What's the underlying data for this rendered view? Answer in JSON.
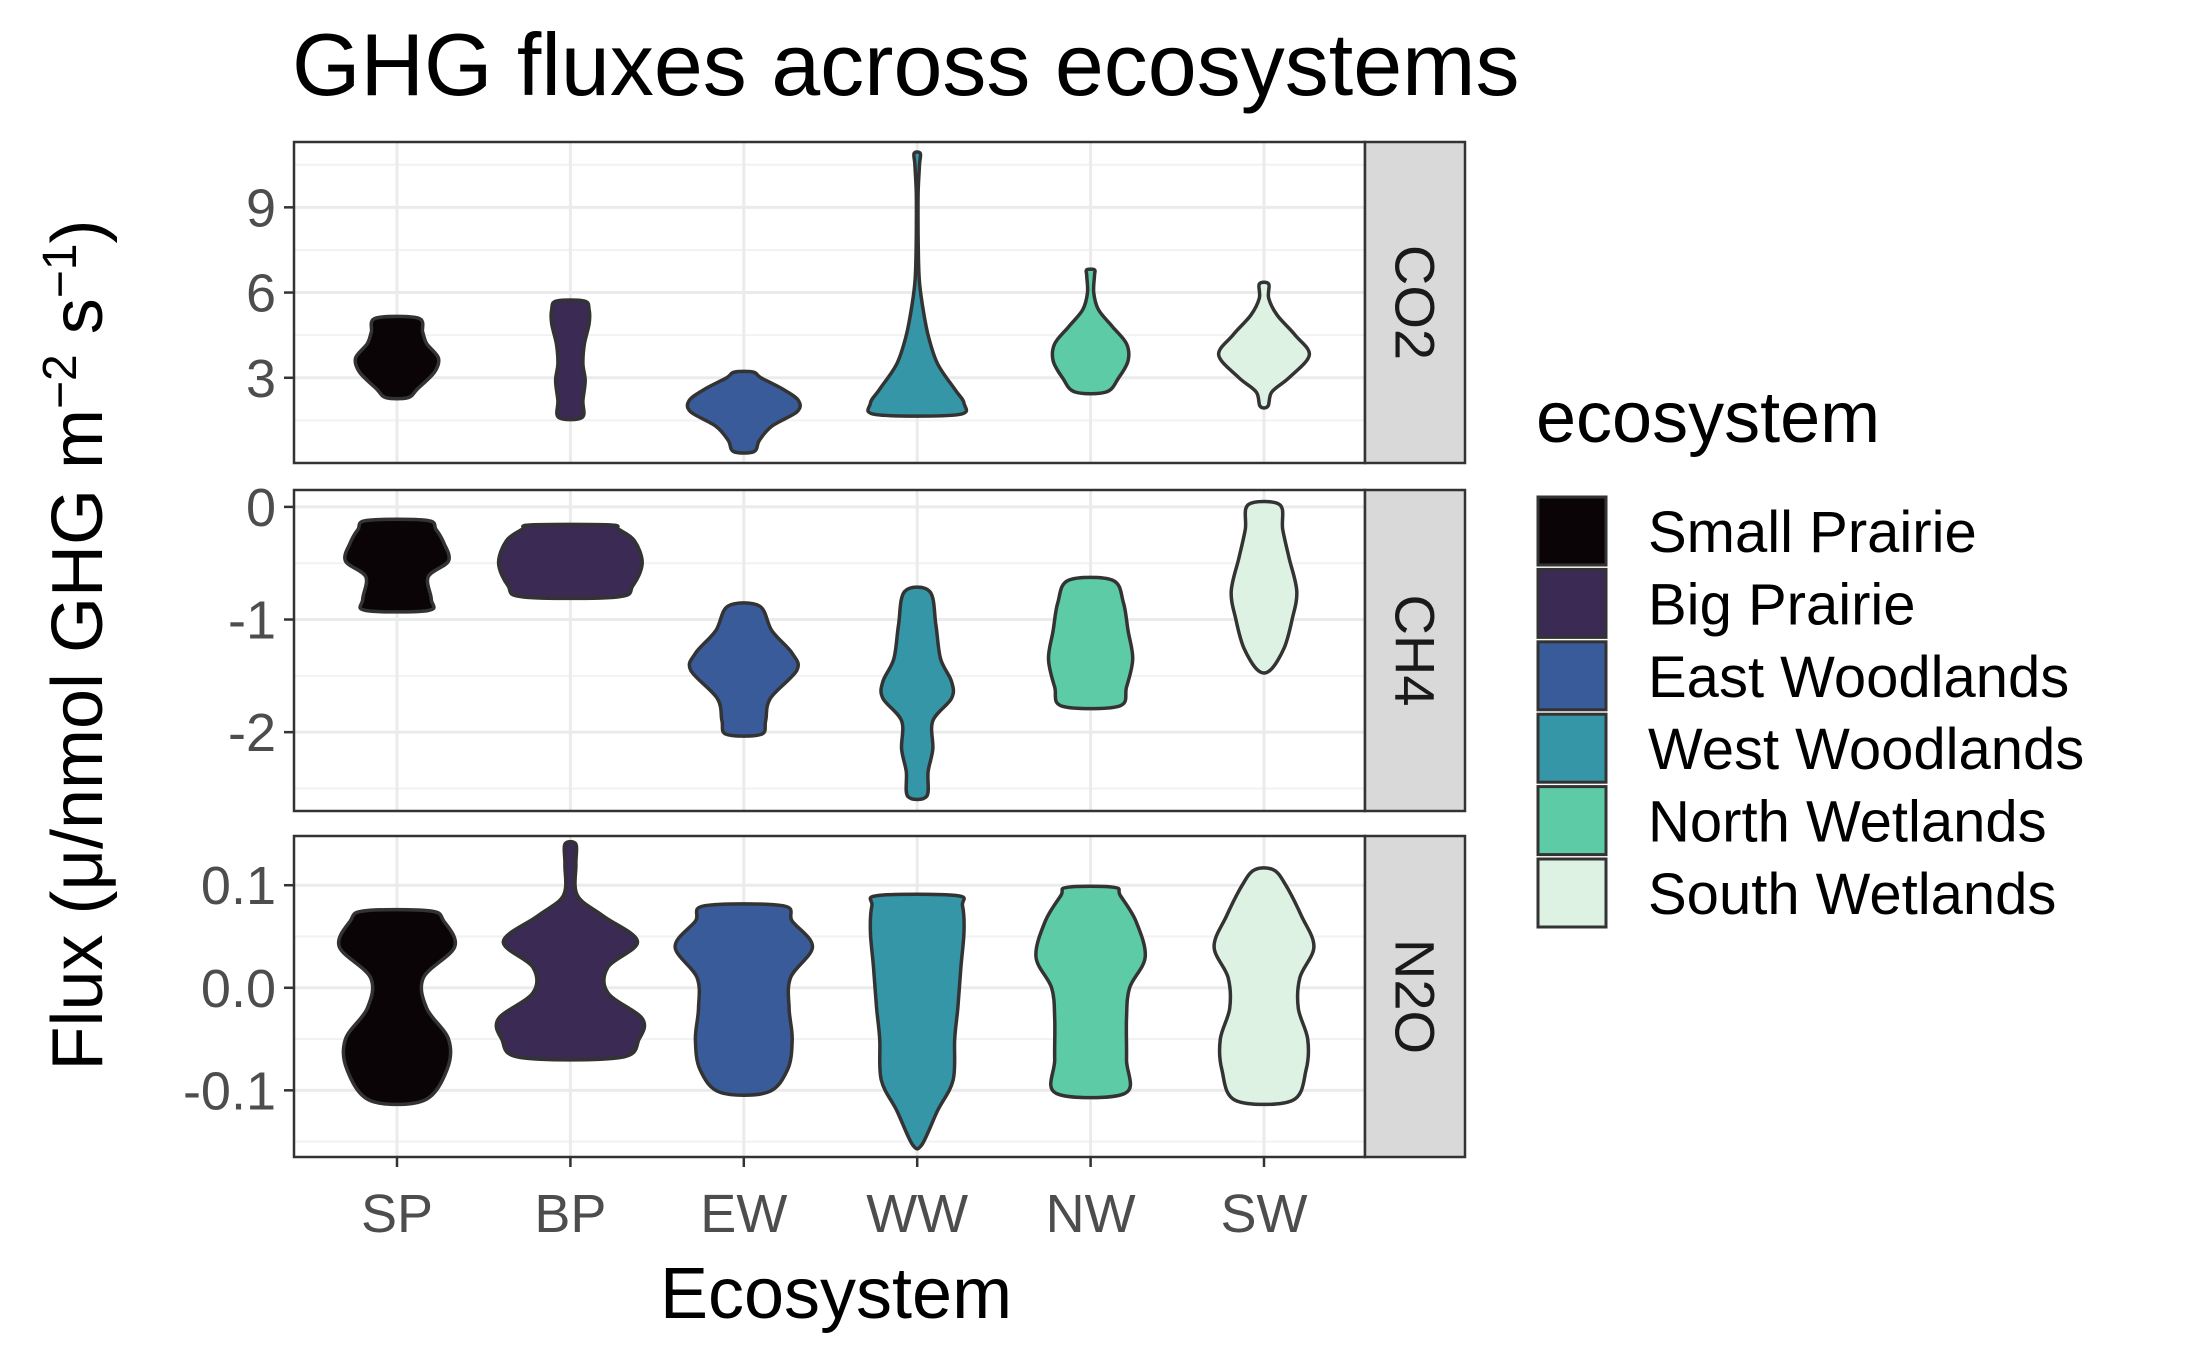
{
  "chart_data": {
    "type": "violin",
    "title": "GHG fluxes across ecosystems",
    "xlabel": "Ecosystem",
    "ylabel": "Flux (μ/nmol GHG m⁻² s⁻¹)",
    "ylabel_parts": {
      "main": "Flux (μ/nmol GHG m",
      "sup1": "−2",
      "mid": " s",
      "sup2": "−1",
      "end": ")"
    },
    "categories": [
      "SP",
      "BP",
      "EW",
      "WW",
      "NW",
      "SW"
    ],
    "legend": {
      "title": "ecosystem",
      "position": "right",
      "entries": [
        {
          "code": "SP",
          "label": "Small Prairie",
          "color": "#0b0406"
        },
        {
          "code": "BP",
          "label": "Big Prairie",
          "color": "#3a2a54"
        },
        {
          "code": "EW",
          "label": "East Woodlands",
          "color": "#3a5b9a"
        },
        {
          "code": "WW",
          "label": "West Woodlands",
          "color": "#3596a8"
        },
        {
          "code": "NW",
          "label": "North Wetlands",
          "color": "#5ecba7"
        },
        {
          "code": "SW",
          "label": "South Wetlands",
          "color": "#def2e4"
        }
      ]
    },
    "grid": true,
    "panels": [
      {
        "label": "CO2",
        "ylim": [
          0.0,
          11.3
        ],
        "yticks": [
          3,
          6,
          9
        ],
        "ytick_labels": [
          "3",
          "6",
          "9"
        ],
        "violins": [
          {
            "category": "SP",
            "profile": [
              [
                2.3,
                0.14
              ],
              [
                2.6,
                0.26
              ],
              [
                3.2,
                0.48
              ],
              [
                3.7,
                0.53
              ],
              [
                4.2,
                0.38
              ],
              [
                4.6,
                0.33
              ],
              [
                5.1,
                0.27
              ]
            ]
          },
          {
            "category": "BP",
            "profile": [
              [
                1.6,
                0.15
              ],
              [
                2.2,
                0.16
              ],
              [
                2.9,
                0.19
              ],
              [
                3.5,
                0.16
              ],
              [
                4.2,
                0.18
              ],
              [
                4.9,
                0.24
              ],
              [
                5.4,
                0.24
              ],
              [
                5.7,
                0.18
              ]
            ]
          },
          {
            "category": "EW",
            "profile": [
              [
                0.4,
                0.13
              ],
              [
                0.8,
                0.2
              ],
              [
                1.3,
                0.36
              ],
              [
                1.8,
                0.68
              ],
              [
                2.2,
                0.7
              ],
              [
                2.6,
                0.5
              ],
              [
                3.0,
                0.22
              ],
              [
                3.2,
                0.12
              ]
            ]
          },
          {
            "category": "WW",
            "profile": [
              [
                1.7,
                0.52
              ],
              [
                2.1,
                0.6
              ],
              [
                2.6,
                0.48
              ],
              [
                3.5,
                0.26
              ],
              [
                4.5,
                0.14
              ],
              [
                5.5,
                0.07
              ],
              [
                6.5,
                0.025
              ],
              [
                8.0,
                0.012
              ],
              [
                9.5,
                0.012
              ],
              [
                10.5,
                0.03
              ],
              [
                10.9,
                0.04
              ]
            ]
          },
          {
            "category": "NW",
            "profile": [
              [
                2.5,
                0.2
              ],
              [
                3.0,
                0.36
              ],
              [
                3.6,
                0.48
              ],
              [
                4.2,
                0.46
              ],
              [
                4.8,
                0.28
              ],
              [
                5.4,
                0.1
              ],
              [
                6.0,
                0.04
              ],
              [
                6.6,
                0.05
              ],
              [
                6.8,
                0.05
              ]
            ]
          },
          {
            "category": "SW",
            "profile": [
              [
                2.0,
                0.05
              ],
              [
                2.5,
                0.1
              ],
              [
                3.0,
                0.32
              ],
              [
                3.8,
                0.58
              ],
              [
                4.5,
                0.4
              ],
              [
                5.2,
                0.17
              ],
              [
                5.8,
                0.06
              ],
              [
                6.3,
                0.06
              ]
            ]
          }
        ]
      },
      {
        "label": "CH4",
        "ylim": [
          -2.7,
          0.15
        ],
        "yticks": [
          -2,
          -1,
          0
        ],
        "ytick_labels": [
          "-2",
          "-1",
          "0"
        ],
        "violins": [
          {
            "category": "SP",
            "profile": [
              [
                -0.92,
                0.4
              ],
              [
                -0.82,
                0.44
              ],
              [
                -0.62,
                0.4
              ],
              [
                -0.48,
                0.66
              ],
              [
                -0.32,
                0.6
              ],
              [
                -0.2,
                0.5
              ],
              [
                -0.12,
                0.38
              ]
            ]
          },
          {
            "category": "BP",
            "profile": [
              [
                -0.8,
                0.6
              ],
              [
                -0.7,
                0.8
              ],
              [
                -0.5,
                0.92
              ],
              [
                -0.3,
                0.82
              ],
              [
                -0.2,
                0.62
              ],
              [
                -0.16,
                0.5
              ]
            ]
          },
          {
            "category": "EW",
            "profile": [
              [
                -2.02,
                0.22
              ],
              [
                -1.9,
                0.28
              ],
              [
                -1.7,
                0.34
              ],
              [
                -1.45,
                0.68
              ],
              [
                -1.3,
                0.62
              ],
              [
                -1.1,
                0.36
              ],
              [
                -0.88,
                0.2
              ]
            ]
          },
          {
            "category": "WW",
            "profile": [
              [
                -2.57,
                0.12
              ],
              [
                -2.35,
                0.14
              ],
              [
                -2.15,
                0.2
              ],
              [
                -1.9,
                0.2
              ],
              [
                -1.7,
                0.44
              ],
              [
                -1.55,
                0.44
              ],
              [
                -1.35,
                0.3
              ],
              [
                -1.05,
                0.24
              ],
              [
                -0.75,
                0.16
              ]
            ]
          },
          {
            "category": "NW",
            "profile": [
              [
                -1.77,
                0.36
              ],
              [
                -1.6,
                0.46
              ],
              [
                -1.35,
                0.54
              ],
              [
                -1.1,
                0.48
              ],
              [
                -0.85,
                0.42
              ],
              [
                -0.65,
                0.28
              ]
            ]
          },
          {
            "category": "SW",
            "profile": [
              [
                -1.45,
                0.08
              ],
              [
                -1.25,
                0.26
              ],
              [
                -1.0,
                0.36
              ],
              [
                -0.75,
                0.42
              ],
              [
                -0.45,
                0.32
              ],
              [
                -0.2,
                0.24
              ],
              [
                0.02,
                0.2
              ]
            ]
          }
        ]
      },
      {
        "label": "N2O",
        "ylim": [
          -0.165,
          0.148
        ],
        "yticks": [
          -0.1,
          0.0,
          0.1
        ],
        "ytick_labels": [
          "-0.1",
          "0.0",
          "0.1"
        ],
        "violins": [
          {
            "category": "SP",
            "profile": [
              [
                -0.11,
                0.34
              ],
              [
                -0.08,
                0.64
              ],
              [
                -0.05,
                0.66
              ],
              [
                -0.02,
                0.38
              ],
              [
                0.01,
                0.34
              ],
              [
                0.04,
                0.74
              ],
              [
                0.065,
                0.6
              ],
              [
                0.075,
                0.42
              ]
            ]
          },
          {
            "category": "BP",
            "profile": [
              [
                -0.068,
                0.64
              ],
              [
                -0.05,
                0.88
              ],
              [
                -0.03,
                0.92
              ],
              [
                -0.005,
                0.48
              ],
              [
                0.02,
                0.48
              ],
              [
                0.045,
                0.86
              ],
              [
                0.07,
                0.42
              ],
              [
                0.09,
                0.09
              ],
              [
                0.12,
                0.07
              ],
              [
                0.14,
                0.07
              ]
            ]
          },
          {
            "category": "EW",
            "profile": [
              [
                -0.102,
                0.3
              ],
              [
                -0.08,
                0.56
              ],
              [
                -0.05,
                0.62
              ],
              [
                -0.02,
                0.58
              ],
              [
                0.01,
                0.6
              ],
              [
                0.04,
                0.88
              ],
              [
                0.065,
                0.62
              ],
              [
                0.08,
                0.5
              ]
            ]
          },
          {
            "category": "WW",
            "profile": [
              [
                -0.153,
                0.06
              ],
              [
                -0.12,
                0.26
              ],
              [
                -0.09,
                0.46
              ],
              [
                -0.05,
                0.48
              ],
              [
                -0.02,
                0.52
              ],
              [
                0.02,
                0.56
              ],
              [
                0.055,
                0.6
              ],
              [
                0.08,
                0.58
              ],
              [
                0.09,
                0.5
              ]
            ]
          },
          {
            "category": "NW",
            "profile": [
              [
                -0.103,
                0.44
              ],
              [
                -0.07,
                0.46
              ],
              [
                -0.03,
                0.46
              ],
              [
                0.0,
                0.5
              ],
              [
                0.03,
                0.7
              ],
              [
                0.065,
                0.58
              ],
              [
                0.09,
                0.38
              ],
              [
                0.098,
                0.3
              ]
            ]
          },
          {
            "category": "SW",
            "profile": [
              [
                -0.11,
                0.36
              ],
              [
                -0.08,
                0.54
              ],
              [
                -0.05,
                0.56
              ],
              [
                -0.02,
                0.44
              ],
              [
                0.01,
                0.46
              ],
              [
                0.04,
                0.64
              ],
              [
                0.07,
                0.48
              ],
              [
                0.1,
                0.28
              ],
              [
                0.115,
                0.12
              ]
            ]
          }
        ]
      }
    ]
  }
}
